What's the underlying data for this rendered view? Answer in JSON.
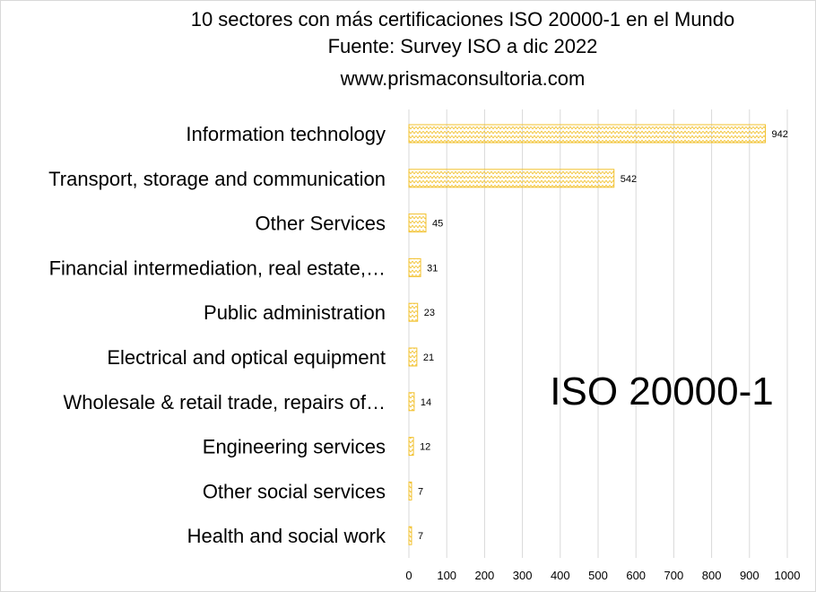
{
  "chart_data": {
    "type": "bar",
    "orientation": "horizontal",
    "title": [
      "10 sectores con más certificaciones ISO 20000-1 en el Mundo",
      "Fuente: Survey ISO a dic 2022",
      "www.prismaconsultoria.com"
    ],
    "categories": [
      "Information technology",
      "Transport, storage and communication",
      "Other Services",
      "Financial intermediation, real estate,…",
      "Public administration",
      "Electrical and optical equipment",
      "Wholesale & retail trade, repairs of…",
      "Engineering services",
      "Other social services",
      "Health and social work"
    ],
    "values": [
      942,
      542,
      45,
      31,
      23,
      21,
      14,
      12,
      7,
      7
    ],
    "xlim": [
      0,
      1000
    ],
    "xticks": [
      0,
      100,
      200,
      300,
      400,
      500,
      600,
      700,
      800,
      900,
      1000
    ],
    "grid": "vertical",
    "bar_fill": "zigzag pattern",
    "colors": {
      "bar_stroke": "#f2c12e",
      "bar_pattern": "#f2c12e",
      "grid": "#d9d9d9"
    },
    "annotation": "ISO 20000-1",
    "data_labels": true
  }
}
